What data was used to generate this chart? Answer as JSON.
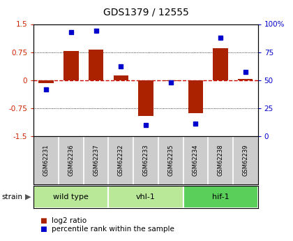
{
  "title": "GDS1379 / 12555",
  "samples": [
    "GSM62231",
    "GSM62236",
    "GSM62237",
    "GSM62232",
    "GSM62233",
    "GSM62235",
    "GSM62234",
    "GSM62238",
    "GSM62239"
  ],
  "log2_ratio": [
    -0.08,
    0.78,
    0.82,
    0.13,
    -0.95,
    -0.02,
    -0.88,
    0.85,
    0.04
  ],
  "percentile_rank": [
    42,
    93,
    94,
    62,
    10,
    48,
    11,
    88,
    57
  ],
  "groups": [
    {
      "label": "wild type",
      "start": 0,
      "end": 3,
      "color": "#b8e898"
    },
    {
      "label": "vhl-1",
      "start": 3,
      "end": 6,
      "color": "#b8e898"
    },
    {
      "label": "hif-1",
      "start": 6,
      "end": 9,
      "color": "#5ad05a"
    }
  ],
  "ylim_left": [
    -1.5,
    1.5
  ],
  "ylim_right": [
    0,
    100
  ],
  "yticks_left": [
    -1.5,
    -0.75,
    0,
    0.75,
    1.5
  ],
  "ytick_labels_left": [
    "-1.5",
    "-0.75",
    "0",
    "0.75",
    "1.5"
  ],
  "yticks_right": [
    0,
    25,
    50,
    75,
    100
  ],
  "ytick_labels_right": [
    "0",
    "25",
    "50",
    "75",
    "100%"
  ],
  "bar_color": "#aa2200",
  "dot_color": "#0000cc",
  "hline_color": "#cc0000",
  "dot_hline_color": "#0000cc",
  "grid_color": "#000000",
  "bg_sample_labels": "#cccccc",
  "label_strain": "strain",
  "legend_log2": "log2 ratio",
  "legend_pct": "percentile rank within the sample"
}
